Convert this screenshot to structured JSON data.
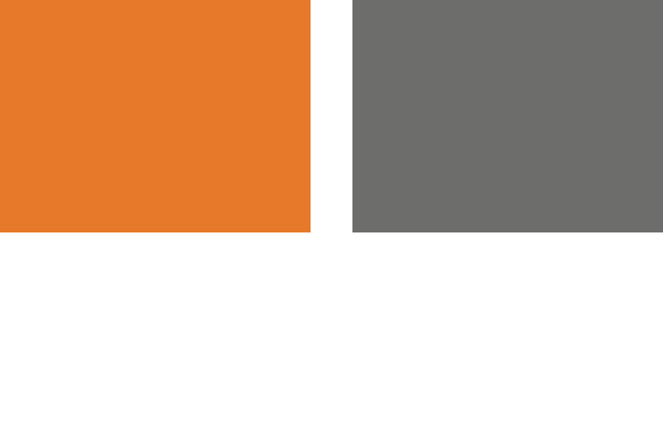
{
  "swatches": [
    {
      "name": "orange",
      "color": "#E67A2A"
    },
    {
      "name": "gray",
      "color": "#6D6D6B"
    }
  ],
  "background_color": "#FFFFFF"
}
